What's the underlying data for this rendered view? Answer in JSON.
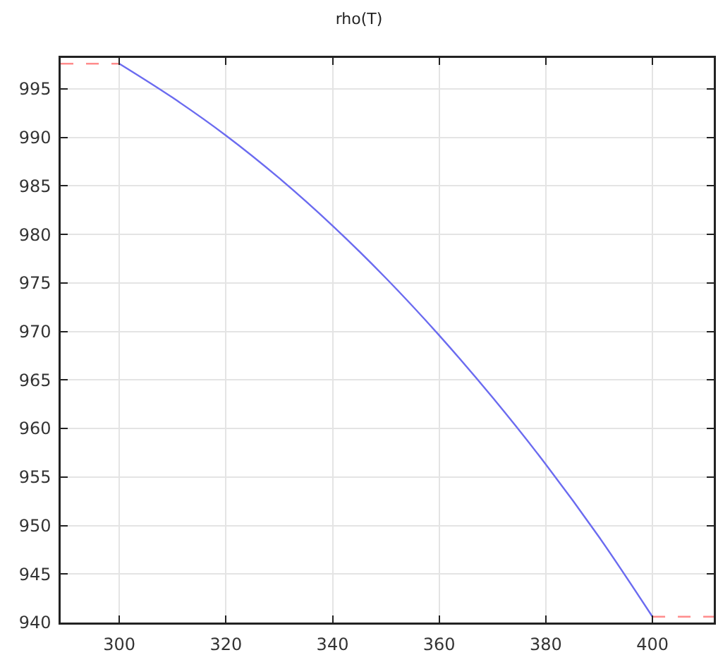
{
  "chart_data": {
    "type": "line",
    "title": "rho(T)",
    "series": [
      {
        "color": "#6b6bf0",
        "x": [
          300,
          310,
          320,
          330,
          340,
          350,
          360,
          370,
          380,
          390,
          400
        ],
        "values": [
          997.6,
          994.1,
          990.2,
          985.8,
          980.9,
          975.5,
          969.6,
          963.2,
          956.3,
          948.8,
          940.6
        ]
      },
      {
        "color": "#ff8c8c",
        "line_style": "dashed",
        "x": [
          289,
          300
        ],
        "values": [
          997.6,
          997.6
        ]
      },
      {
        "color": "#ff8c8c",
        "line_style": "dashed",
        "x": [
          400,
          411.5
        ],
        "values": [
          940.6,
          940.6
        ]
      }
    ],
    "xlim": [
      289,
      411.5
    ],
    "xticks": [
      300,
      320,
      340,
      360,
      380,
      400
    ],
    "ylim": [
      940,
      998.2
    ],
    "yticks": [
      940,
      945,
      950,
      955,
      960,
      965,
      970,
      975,
      980,
      985,
      990,
      995
    ],
    "grid": true,
    "marker": "none",
    "line_style": "solid"
  }
}
